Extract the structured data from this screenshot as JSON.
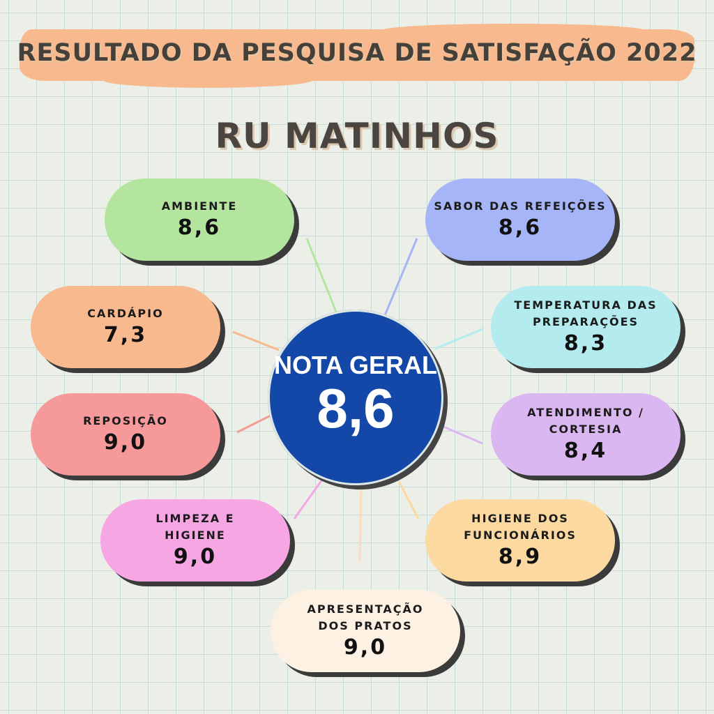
{
  "header": {
    "title": "RESULTADO DA PESQUISA DE SATISFAÇÃO 2022",
    "subtitle": "RU MATINHOS"
  },
  "center": {
    "label": "NOTA GERAL",
    "value": "8,6",
    "color": "#1348a8"
  },
  "categories": [
    {
      "label": "AMBIENTE",
      "value": "8,6",
      "color": "#b3e59f"
    },
    {
      "label": "SABOR DAS REFEIÇÕES",
      "value": "8,6",
      "color": "#a6b4f8"
    },
    {
      "label": "CARDÁPIO",
      "value": "7,3",
      "color": "#f8b98f"
    },
    {
      "label": "TEMPERATURA DAS\nPREPARAÇÕES",
      "value": "8,3",
      "color": "#b3ebee"
    },
    {
      "label": "REPOSIÇÃO",
      "value": "9,0",
      "color": "#f6999a"
    },
    {
      "label": "ATENDIMENTO /\nCORTESIA",
      "value": "8,4",
      "color": "#dbb7f1"
    },
    {
      "label": "LIMPEZA E\nHIGIENE",
      "value": "9,0",
      "color": "#f7a6e4"
    },
    {
      "label": "HIGIENE DOS\nFUNCIONÁRIOS",
      "value": "8,9",
      "color": "#fbd9a1"
    },
    {
      "label": "APRESENTAÇÃO\nDOS PRATOS",
      "value": "9,0",
      "color": "#fcf1e2"
    }
  ]
}
